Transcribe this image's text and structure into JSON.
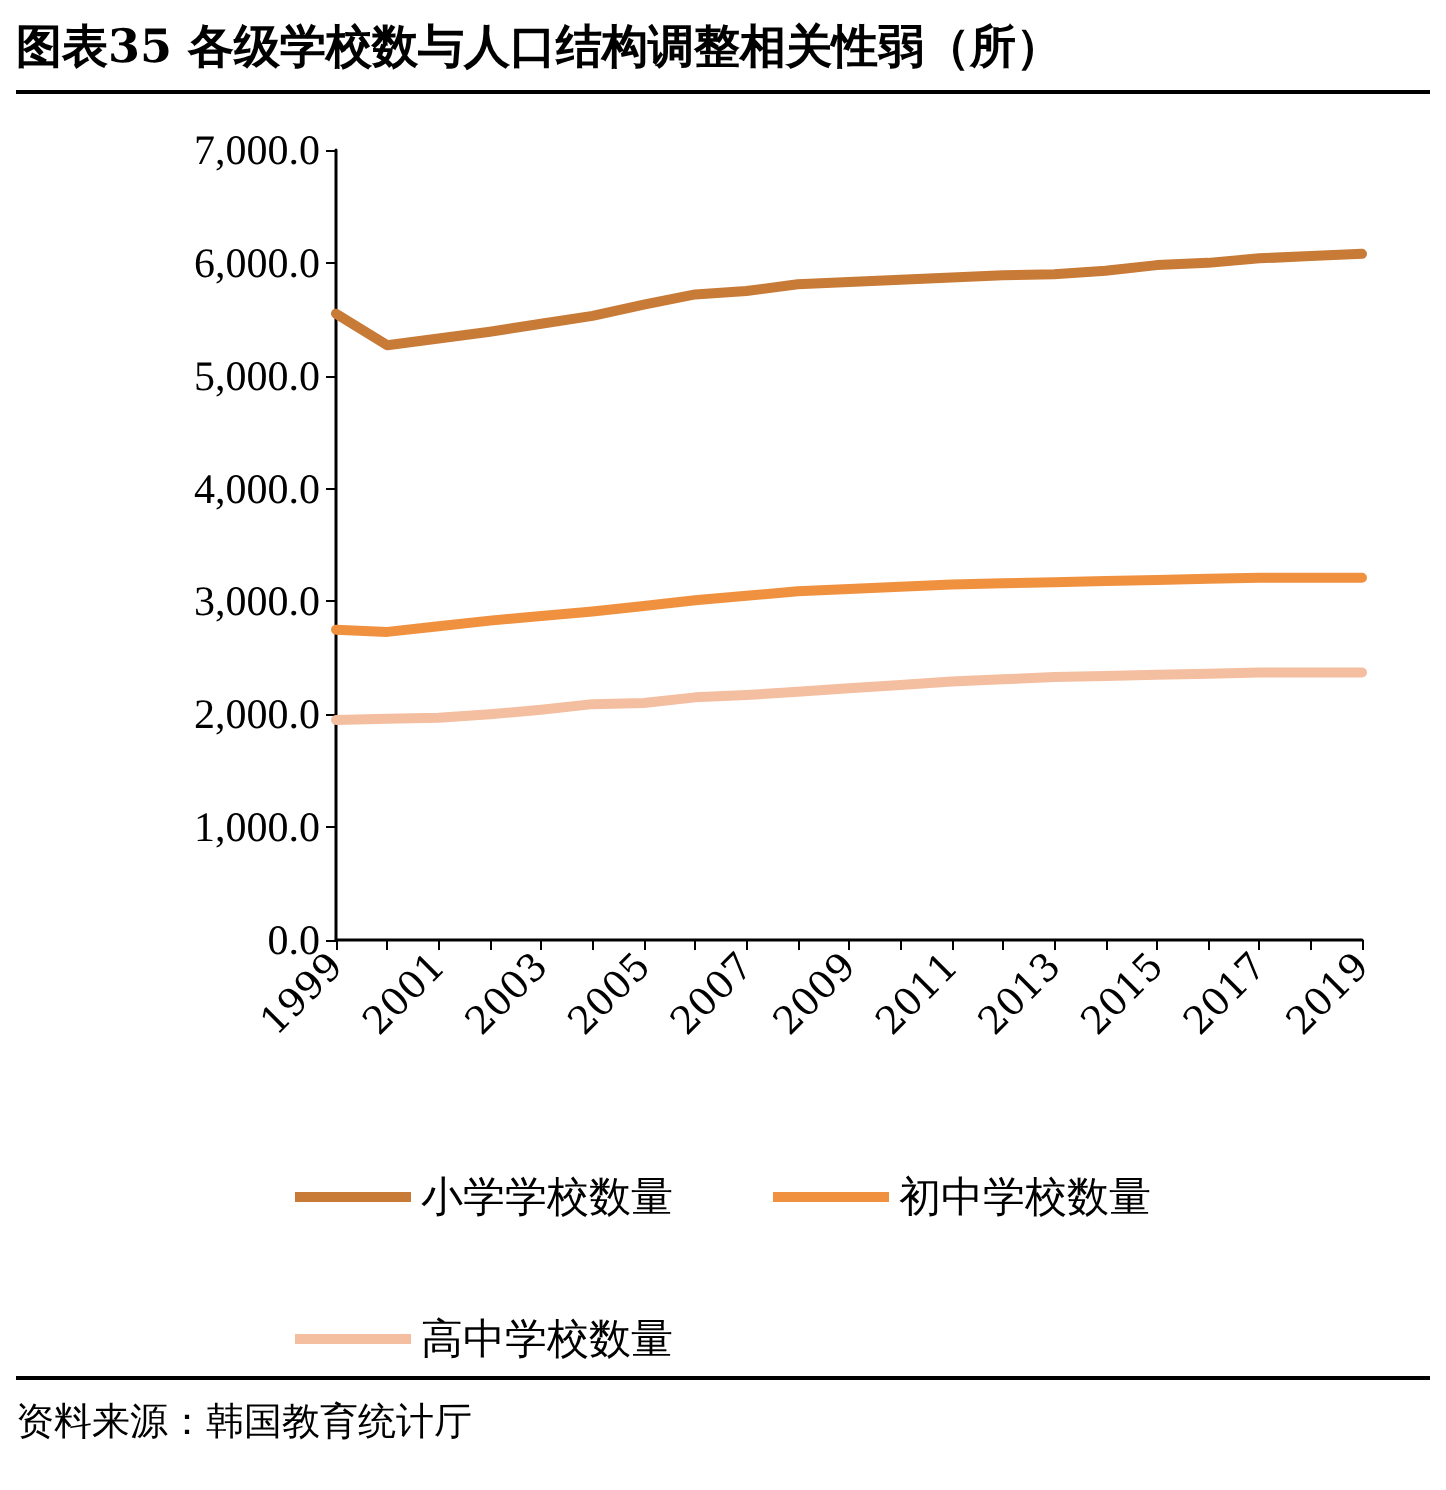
{
  "chart_data": {
    "type": "line",
    "title": "图表35 各级学校数与人口结构调整相关性弱（所）",
    "categories": [
      "1999",
      null,
      "2001",
      null,
      "2003",
      null,
      "2005",
      null,
      "2007",
      null,
      "2009",
      null,
      "2011",
      null,
      "2013",
      null,
      "2015",
      null,
      "2017",
      null,
      "2019"
    ],
    "series": [
      {
        "name": "小学学校数量",
        "color": "#c87a37",
        "values": [
          5550,
          5270,
          5330,
          5390,
          5460,
          5530,
          5630,
          5720,
          5750,
          5810,
          5830,
          5850,
          5870,
          5890,
          5900,
          5930,
          5980,
          6000,
          6040,
          6060,
          6080
        ]
      },
      {
        "name": "初中学校数量",
        "color": "#f0913f",
        "values": [
          2750,
          2730,
          2780,
          2830,
          2870,
          2910,
          2960,
          3010,
          3050,
          3090,
          3110,
          3130,
          3150,
          3160,
          3170,
          3180,
          3190,
          3200,
          3210,
          3210,
          3210
        ]
      },
      {
        "name": "高中学校数量",
        "color": "#f4bea0",
        "values": [
          1950,
          1960,
          1970,
          2000,
          2040,
          2090,
          2100,
          2150,
          2170,
          2200,
          2230,
          2260,
          2290,
          2310,
          2330,
          2340,
          2350,
          2360,
          2370,
          2370,
          2370
        ]
      }
    ],
    "ylim": [
      0,
      7000
    ],
    "yticks": [
      {
        "value": 0,
        "label": "0.0"
      },
      {
        "value": 1000,
        "label": "1,000.0"
      },
      {
        "value": 2000,
        "label": "2,000.0"
      },
      {
        "value": 3000,
        "label": "3,000.0"
      },
      {
        "value": 4000,
        "label": "4,000.0"
      },
      {
        "value": 5000,
        "label": "5,000.0"
      },
      {
        "value": 6000,
        "label": "6,000.0"
      },
      {
        "value": 7000,
        "label": "7,000.0"
      }
    ],
    "grid": false,
    "legend": "bottom",
    "marker": "none",
    "line_style": "solid",
    "annotations": [
      "资料来源：韩国教育统计厅"
    ]
  }
}
